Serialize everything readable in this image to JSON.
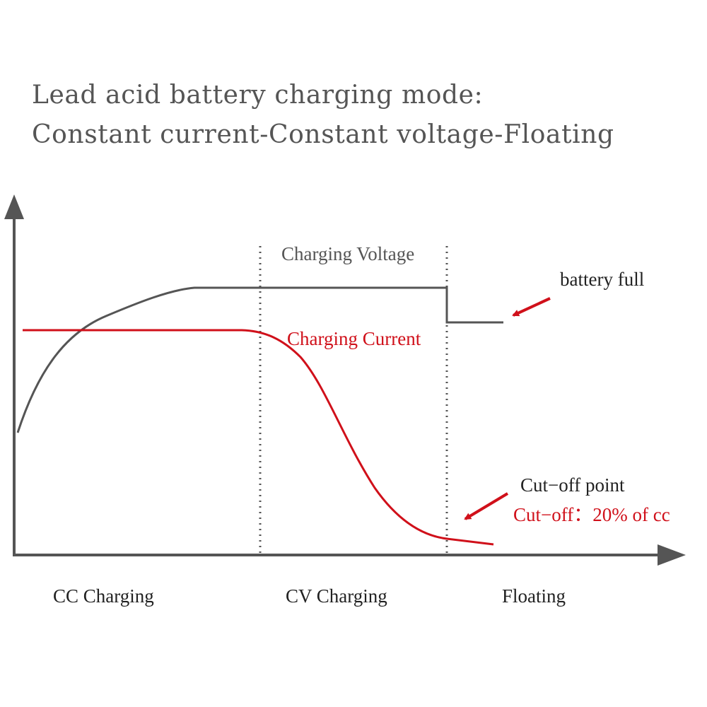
{
  "title": {
    "line1": "Lead acid battery charging mode:",
    "line2": "Constant current-Constant voltage-Floating"
  },
  "labels": {
    "charging_voltage": "Charging Voltage",
    "charging_current": "Charging Current",
    "battery_full": "battery  full",
    "cutoff_point": "Cut−off  point",
    "cutoff_value": "Cut−off：20%  of  cc"
  },
  "phases": [
    "CC Charging",
    "CV  Charging",
    "Floating"
  ],
  "colors": {
    "axis": "#555555",
    "voltage": "#555555",
    "current": "#d0101a",
    "arrow": "#d0101a",
    "divider": "#555555"
  }
}
